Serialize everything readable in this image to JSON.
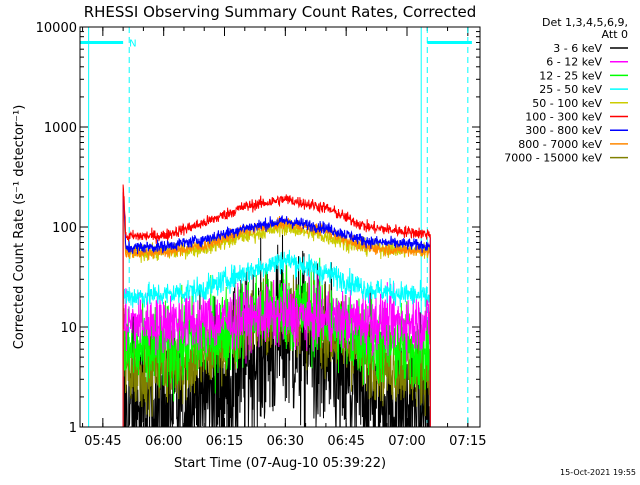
{
  "chart_data": {
    "type": "line",
    "title": "RHESSI Observing Summary Count Rates, Corrected",
    "xlabel": "Start Time (07-Aug-10 05:39:22)",
    "ylabel": "Corrected Count Rate (s⁻¹ detector⁻¹)",
    "yscale": "log",
    "ylim": [
      1,
      10000
    ],
    "xlim": [
      "05:39:22",
      "07:18:00"
    ],
    "x_ticks": [
      "05:45",
      "06:00",
      "06:15",
      "06:30",
      "06:45",
      "07:00",
      "07:15"
    ],
    "y_ticks": [
      "1",
      "10",
      "100",
      "1000",
      "10000"
    ],
    "x_minor_step_minutes": 5,
    "legend_header": [
      "Det 1,3,4,5,6,9,",
      "Att 0"
    ],
    "legend_position": "right",
    "footer": "15-Oct-2021 19:55",
    "data_start": "05:50:00",
    "data_end": "07:05:45",
    "peak_time": "06:30",
    "series": [
      {
        "name": "3 - 6 keV",
        "color": "#000000",
        "x": [
          "05:50",
          "05:55",
          "06:05",
          "06:15",
          "06:22",
          "06:30",
          "06:38",
          "06:45",
          "06:55",
          "07:05"
        ],
        "y": [
          1.2,
          1.4,
          1.6,
          2.5,
          5,
          8.5,
          5,
          2.5,
          1.6,
          1.3
        ],
        "noise": 0.45
      },
      {
        "name": "6 - 12 keV",
        "color": "#ff00ff",
        "x": [
          "05:50",
          "06:00",
          "06:15",
          "06:30",
          "06:45",
          "07:05"
        ],
        "y": [
          11,
          11,
          11.5,
          13,
          11.5,
          11
        ],
        "noise": 0.15
      },
      {
        "name": "12 - 25 keV",
        "color": "#00ff00",
        "x": [
          "05:50",
          "05:55",
          "06:05",
          "06:15",
          "06:22",
          "06:30",
          "06:38",
          "06:45",
          "06:55",
          "07:05"
        ],
        "y": [
          5.5,
          5.8,
          6.5,
          9,
          13,
          16,
          13,
          9,
          6.5,
          5.8
        ],
        "noise": 0.22
      },
      {
        "name": "25 - 50 keV",
        "color": "#00ffff",
        "x": [
          "05:50",
          "06:00",
          "06:10",
          "06:20",
          "06:30",
          "06:40",
          "06:50",
          "07:05"
        ],
        "y": [
          20,
          21,
          24,
          35,
          47,
          35,
          24,
          20
        ],
        "noise": 0.06
      },
      {
        "name": "50 - 100 keV",
        "color": "#cccc00",
        "x": [
          "05:50",
          "06:00",
          "06:10",
          "06:20",
          "06:30",
          "06:40",
          "06:50",
          "07:05"
        ],
        "y": [
          55,
          56,
          62,
          82,
          100,
          80,
          62,
          58
        ],
        "noise": 0.04
      },
      {
        "name": "100 - 300 keV",
        "color": "#ff0000",
        "x": [
          "05:50",
          "06:00",
          "06:10",
          "06:20",
          "06:30",
          "06:40",
          "06:50",
          "07:05"
        ],
        "y": [
          80,
          82,
          110,
          160,
          190,
          155,
          100,
          85
        ],
        "noise": 0.03
      },
      {
        "name": "300 - 800 keV",
        "color": "#0000ff",
        "x": [
          "05:50",
          "06:00",
          "06:10",
          "06:20",
          "06:30",
          "06:40",
          "06:50",
          "07:05"
        ],
        "y": [
          62,
          64,
          75,
          98,
          115,
          98,
          72,
          65
        ],
        "noise": 0.03
      },
      {
        "name": "800 - 7000 keV",
        "color": "#ff8800",
        "x": [
          "05:50",
          "06:00",
          "06:10",
          "06:20",
          "06:30",
          "06:40",
          "06:50",
          "07:05"
        ],
        "y": [
          55,
          56,
          65,
          92,
          110,
          92,
          62,
          57
        ],
        "noise": 0.03
      },
      {
        "name": "7000 - 15000 keV",
        "color": "#808000",
        "x": [
          "05:50",
          "05:55",
          "06:05",
          "06:15",
          "06:22",
          "06:30",
          "06:38",
          "06:45",
          "06:55",
          "07:05"
        ],
        "y": [
          3.8,
          3.9,
          4.2,
          6.5,
          11,
          15,
          11,
          6.5,
          4.2,
          3.8
        ],
        "noise": 0.2
      }
    ],
    "vertical_lines": [
      {
        "x": "05:41:30",
        "style": "solid",
        "color": "#00ffff"
      },
      {
        "x": "05:51:30",
        "style": "dashed",
        "color": "#00ffff"
      },
      {
        "x": "07:03:30",
        "style": "solid",
        "color": "#00ffff"
      },
      {
        "x": "07:05:00",
        "style": "dashed",
        "color": "#00ffff"
      },
      {
        "x": "07:15:00",
        "style": "dashed",
        "color": "#00ffff"
      }
    ],
    "night_segments": [
      {
        "start": "05:39:22",
        "end": "05:50:00",
        "y": 7000,
        "label": "N"
      },
      {
        "start": "07:05:00",
        "end": "07:16:00",
        "y": 7000,
        "label": ""
      }
    ]
  }
}
